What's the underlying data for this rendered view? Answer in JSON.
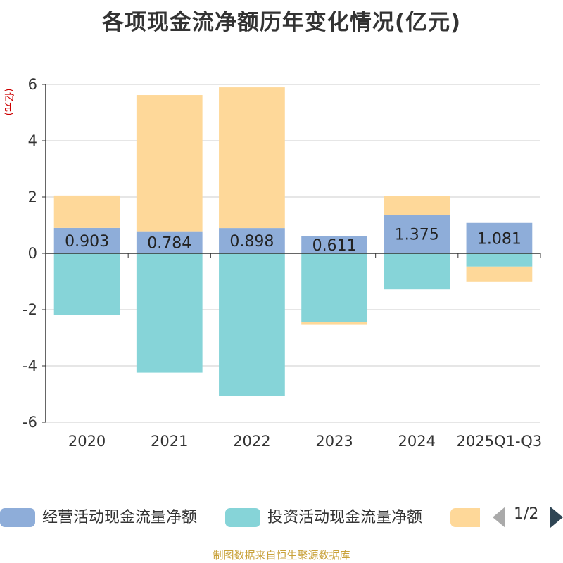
{
  "chart_data": {
    "type": "bar",
    "stacked": true,
    "title": "各项现金流净额历年变化情况(亿元)",
    "ylabel": "(亿元)",
    "xlabel": "",
    "ylim": [
      -6,
      6
    ],
    "yticks": [
      6,
      4,
      2,
      0,
      -2,
      -4,
      -6
    ],
    "categories": [
      "2020",
      "2021",
      "2022",
      "2023",
      "2024",
      "2025Q1-Q3"
    ],
    "series": [
      {
        "name": "经营活动现金流量净额",
        "color": "#8eadd9",
        "values": [
          0.903,
          0.784,
          0.898,
          0.611,
          1.375,
          1.081
        ],
        "labels": [
          "0.903",
          "0.784",
          "0.898",
          "0.611",
          "1.375",
          "1.081"
        ]
      },
      {
        "name": "投资活动现金流量净额",
        "color": "#86d4d8",
        "values": [
          -2.19,
          -4.24,
          -5.05,
          -2.44,
          -1.28,
          -0.47
        ]
      },
      {
        "name": "",
        "color": "#fed899",
        "values": [
          1.15,
          4.84,
          5.0,
          -0.1,
          0.66,
          -0.55
        ]
      }
    ]
  },
  "legend": {
    "items": [
      {
        "label": "经营活动现金流量净额",
        "color": "#8eadd9"
      },
      {
        "label": "投资活动现金流量净额",
        "color": "#86d4d8"
      },
      {
        "label": "",
        "color": "#fed899"
      }
    ],
    "page_indicator": "1/2"
  },
  "source": "制图数据来自恒生聚源数据库"
}
